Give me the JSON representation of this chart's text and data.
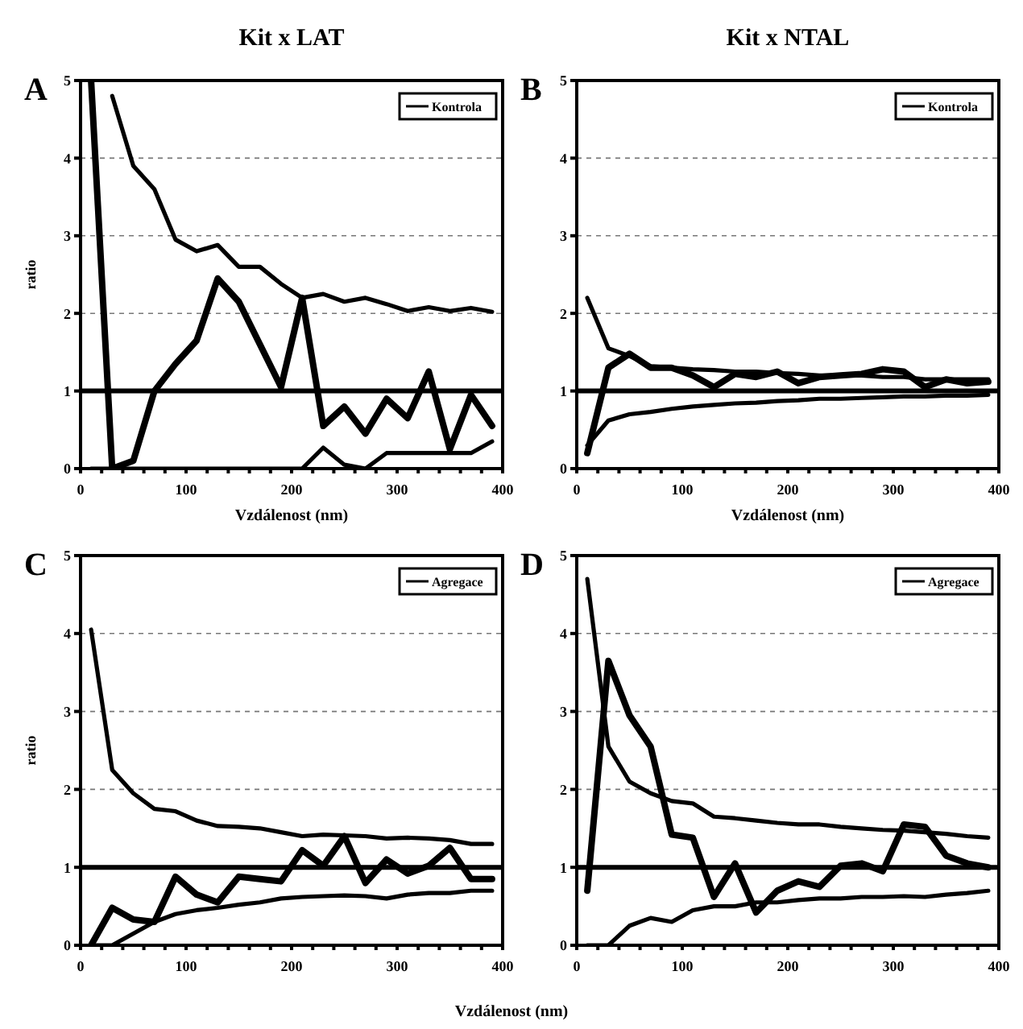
{
  "chart_data": [
    {
      "type": "line",
      "title": "Kit x LAT",
      "xlabel": "Vzdálenost (nm)",
      "ylabel": "ratio",
      "annotations": [
        "A"
      ],
      "legend": "top right",
      "grid": "y",
      "line_style": "solid",
      "marker": "none",
      "xlim": [
        0,
        400
      ],
      "xticks": [
        0,
        100,
        200,
        300,
        400
      ],
      "ylim": [
        0,
        5
      ],
      "yticks": [
        0,
        1,
        2,
        3,
        4,
        5
      ],
      "x": [
        10,
        30,
        50,
        70,
        90,
        110,
        130,
        150,
        170,
        190,
        210,
        230,
        250,
        270,
        290,
        310,
        330,
        350,
        370,
        390
      ],
      "ref_lines": [
        {
          "axis": "y",
          "value": 1,
          "color": "#000000"
        }
      ],
      "series": [
        {
          "color": "#000000",
          "values": [
            null,
            4.8,
            3.9,
            3.6,
            2.95,
            2.8,
            2.88,
            2.6,
            2.6,
            2.38,
            2.2,
            2.25,
            2.15,
            2.2,
            2.12,
            2.03,
            2.08,
            2.03,
            2.07,
            2.02
          ]
        },
        {
          "name": "Kontrola",
          "color": "#000000",
          "values": [
            5,
            0,
            0.1,
            1.0,
            1.35,
            1.65,
            2.45,
            2.15,
            1.6,
            1.05,
            2.2,
            0.55,
            0.8,
            0.45,
            0.9,
            0.65,
            1.25,
            0.25,
            0.95,
            0.55
          ]
        },
        {
          "color": "#000000",
          "values": [
            0,
            0,
            0,
            0,
            0,
            0,
            0,
            0,
            0,
            0,
            0,
            0.27,
            0.05,
            0,
            0.2,
            0.2,
            0.2,
            0.2,
            0.2,
            0.35
          ]
        }
      ]
    },
    {
      "type": "line",
      "title": "Kit x NTAL",
      "xlabel": "Vzdálenost (nm)",
      "annotations": [
        "B"
      ],
      "legend": "top right",
      "grid": "y",
      "line_style": "solid",
      "marker": "none",
      "xlim": [
        0,
        400
      ],
      "xticks": [
        0,
        100,
        200,
        300,
        400
      ],
      "ylim": [
        0,
        5
      ],
      "yticks": [
        0,
        1,
        2,
        3,
        4,
        5
      ],
      "x": [
        10,
        30,
        50,
        70,
        90,
        110,
        130,
        150,
        170,
        190,
        210,
        230,
        250,
        270,
        290,
        310,
        330,
        350,
        370,
        390
      ],
      "ref_lines": [
        {
          "axis": "y",
          "value": 1,
          "color": "#000000"
        }
      ],
      "series": [
        {
          "color": "#000000",
          "values": [
            2.2,
            1.55,
            1.45,
            1.32,
            1.3,
            1.28,
            1.27,
            1.25,
            1.25,
            1.23,
            1.22,
            1.2,
            1.2,
            1.2,
            1.18,
            1.18,
            1.15,
            1.15,
            1.15,
            1.15
          ]
        },
        {
          "name": "Kontrola",
          "color": "#000000",
          "values": [
            0.2,
            1.3,
            1.48,
            1.3,
            1.3,
            1.2,
            1.05,
            1.22,
            1.18,
            1.25,
            1.1,
            1.18,
            1.2,
            1.22,
            1.28,
            1.25,
            1.05,
            1.15,
            1.1,
            1.12
          ]
        },
        {
          "color": "#000000",
          "values": [
            0.3,
            0.62,
            0.7,
            0.73,
            0.77,
            0.8,
            0.82,
            0.84,
            0.85,
            0.87,
            0.88,
            0.9,
            0.9,
            0.91,
            0.92,
            0.93,
            0.93,
            0.94,
            0.94,
            0.95
          ]
        }
      ]
    },
    {
      "type": "line",
      "xlabel": "Vzdálenost (nm)",
      "ylabel": "ratio",
      "annotations": [
        "C"
      ],
      "legend": "top right",
      "grid": "y",
      "line_style": "solid",
      "marker": "none",
      "xlim": [
        0,
        400
      ],
      "xticks": [
        0,
        100,
        200,
        300,
        400
      ],
      "ylim": [
        0,
        5
      ],
      "yticks": [
        0,
        1,
        2,
        3,
        4,
        5
      ],
      "x": [
        10,
        30,
        50,
        70,
        90,
        110,
        130,
        150,
        170,
        190,
        210,
        230,
        250,
        270,
        290,
        310,
        330,
        350,
        370,
        390
      ],
      "ref_lines": [
        {
          "axis": "y",
          "value": 1,
          "color": "#000000"
        }
      ],
      "series": [
        {
          "color": "#000000",
          "values": [
            4.05,
            2.25,
            1.95,
            1.75,
            1.72,
            1.6,
            1.53,
            1.52,
            1.5,
            1.45,
            1.4,
            1.42,
            1.41,
            1.4,
            1.37,
            1.38,
            1.37,
            1.35,
            1.3,
            1.3
          ]
        },
        {
          "name": "Agregace",
          "color": "#000000",
          "values": [
            0,
            0.48,
            0.33,
            0.3,
            0.88,
            0.65,
            0.55,
            0.88,
            0.85,
            0.82,
            1.22,
            1.02,
            1.4,
            0.8,
            1.1,
            0.92,
            1.02,
            1.25,
            0.85,
            0.85
          ]
        },
        {
          "color": "#000000",
          "values": [
            0,
            0,
            0.15,
            0.3,
            0.4,
            0.45,
            0.48,
            0.52,
            0.55,
            0.6,
            0.62,
            0.63,
            0.64,
            0.63,
            0.6,
            0.65,
            0.67,
            0.67,
            0.7,
            0.7
          ]
        }
      ]
    },
    {
      "type": "line",
      "annotations": [
        "D"
      ],
      "legend": "top right",
      "grid": "y",
      "line_style": "solid",
      "marker": "none",
      "xlim": [
        0,
        400
      ],
      "xticks": [
        0,
        100,
        200,
        300,
        400
      ],
      "ylim": [
        0,
        5
      ],
      "yticks": [
        0,
        1,
        2,
        3,
        4,
        5
      ],
      "x": [
        10,
        30,
        50,
        70,
        90,
        110,
        130,
        150,
        170,
        190,
        210,
        230,
        250,
        270,
        290,
        310,
        330,
        350,
        370,
        390
      ],
      "ref_lines": [
        {
          "axis": "y",
          "value": 1,
          "color": "#000000"
        }
      ],
      "series": [
        {
          "color": "#000000",
          "values": [
            4.7,
            2.55,
            2.1,
            1.95,
            1.85,
            1.82,
            1.65,
            1.63,
            1.6,
            1.57,
            1.55,
            1.55,
            1.52,
            1.5,
            1.48,
            1.47,
            1.45,
            1.43,
            1.4,
            1.38
          ]
        },
        {
          "name": "Agregace",
          "color": "#000000",
          "values": [
            0.7,
            3.65,
            2.95,
            2.55,
            1.42,
            1.38,
            0.62,
            1.05,
            0.42,
            0.7,
            0.82,
            0.75,
            1.02,
            1.05,
            0.95,
            1.55,
            1.52,
            1.15,
            1.05,
            1.0
          ]
        },
        {
          "color": "#000000",
          "values": [
            0,
            0,
            0.25,
            0.35,
            0.3,
            0.45,
            0.5,
            0.5,
            0.55,
            0.55,
            0.58,
            0.6,
            0.6,
            0.62,
            0.62,
            0.63,
            0.62,
            0.65,
            0.67,
            0.7
          ]
        }
      ]
    }
  ]
}
